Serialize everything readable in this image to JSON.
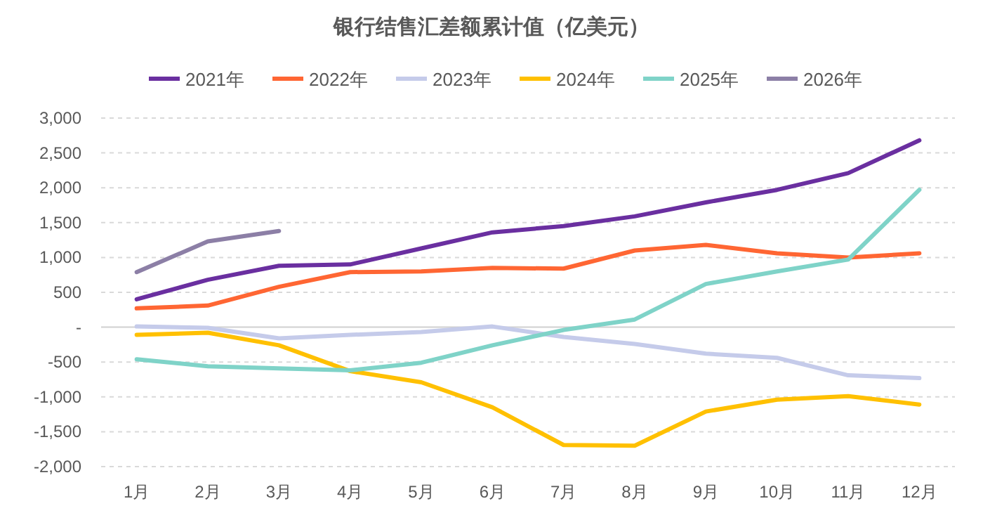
{
  "chart_data": {
    "type": "line",
    "title": "银行结售汇差额累计值（亿美元）",
    "categories": [
      "1月",
      "2月",
      "3月",
      "4月",
      "5月",
      "6月",
      "7月",
      "8月",
      "9月",
      "10月",
      "11月",
      "12月"
    ],
    "series": [
      {
        "name": "2021年",
        "color": "#6a2fa0",
        "values": [
          400,
          680,
          880,
          900,
          1130,
          1360,
          1450,
          1590,
          1790,
          1970,
          2210,
          2680
        ]
      },
      {
        "name": "2022年",
        "color": "#ff6633",
        "values": [
          270,
          310,
          580,
          790,
          800,
          850,
          840,
          1100,
          1180,
          1060,
          1000,
          1060
        ]
      },
      {
        "name": "2023年",
        "color": "#c5cbea",
        "values": [
          10,
          -10,
          -160,
          -110,
          -70,
          10,
          -140,
          -240,
          -380,
          -440,
          -690,
          -730
        ]
      },
      {
        "name": "2024年",
        "color": "#ffc000",
        "values": [
          -110,
          -80,
          -260,
          -630,
          -790,
          -1150,
          -1690,
          -1700,
          -1210,
          -1040,
          -990,
          -1110
        ]
      },
      {
        "name": "2025年",
        "color": "#7fd3c8",
        "values": [
          -460,
          -560,
          -590,
          -620,
          -510,
          -260,
          -40,
          110,
          620,
          800,
          970,
          1970
        ]
      },
      {
        "name": "2026年",
        "color": "#8c7fa6",
        "values": [
          790,
          1230,
          1380,
          null,
          null,
          null,
          null,
          null,
          null,
          null,
          null,
          null
        ]
      }
    ],
    "ylim": [
      -2000,
      3000
    ],
    "yticks": [
      {
        "value": -2000,
        "label": "-2,000"
      },
      {
        "value": -1500,
        "label": "-1,500"
      },
      {
        "value": -1000,
        "label": "-1,000"
      },
      {
        "value": -500,
        "label": "-500"
      },
      {
        "value": 0,
        "label": "-"
      },
      500,
      {
        "value": 1000,
        "label": "1,000"
      },
      {
        "value": 1500,
        "label": "1,500"
      },
      {
        "value": 2000,
        "label": "2,000"
      },
      {
        "value": 2500,
        "label": "2,500"
      },
      {
        "value": 3000,
        "label": "3,000"
      }
    ],
    "grid": "y",
    "legend": "top",
    "marker": "none",
    "line_style": "solid"
  }
}
